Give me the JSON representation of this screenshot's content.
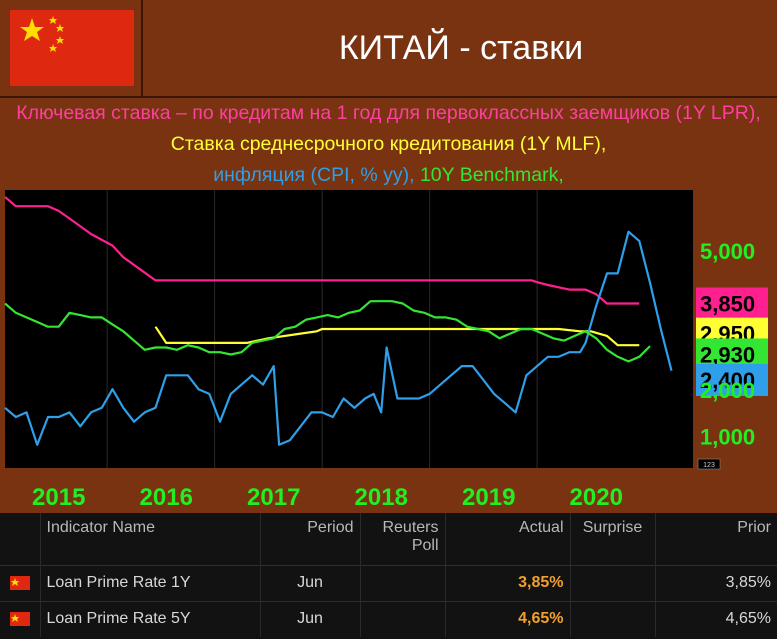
{
  "header": {
    "title": "КИТАЙ - ставки"
  },
  "subtitle": {
    "part1": "Ключевая ставка – по кредитам на 1 год для первоклассных заемщиков (1Y LPR),",
    "part2": "Ставка среднесрочного кредитования (1Y MLF),",
    "part3": "инфляция (CPI, % yy),",
    "part4": "10Y Benchmark,"
  },
  "colors": {
    "lpr": "#ff1f8f",
    "mlf": "#ffff33",
    "cpi": "#2e9fe8",
    "bench": "#33e633",
    "year_label": "#22ee22",
    "actual": "#f0a030"
  },
  "chart_data": {
    "type": "line",
    "x_labels": [
      "2015",
      "2016",
      "2017",
      "2018",
      "2019",
      "2020"
    ],
    "y_ticks": [
      "5,000",
      "2,000",
      "1,000"
    ],
    "ylim": [
      0.3,
      6.3
    ],
    "corner_label": "123",
    "series": [
      {
        "name": "1Y LPR",
        "color": "#ff1f8f",
        "last_label": "3,850",
        "points": [
          [
            2014.55,
            6.15
          ],
          [
            2014.65,
            5.95
          ],
          [
            2014.95,
            5.95
          ],
          [
            2015.05,
            5.85
          ],
          [
            2015.2,
            5.6
          ],
          [
            2015.35,
            5.35
          ],
          [
            2015.55,
            5.1
          ],
          [
            2015.65,
            4.85
          ],
          [
            2015.8,
            4.6
          ],
          [
            2015.95,
            4.35
          ],
          [
            2016.0,
            4.35
          ],
          [
            2018.0,
            4.35
          ],
          [
            2019.45,
            4.35
          ],
          [
            2019.5,
            4.31
          ],
          [
            2019.6,
            4.25
          ],
          [
            2019.7,
            4.2
          ],
          [
            2019.8,
            4.15
          ],
          [
            2019.95,
            4.15
          ],
          [
            2020.05,
            4.05
          ],
          [
            2020.15,
            3.85
          ],
          [
            2020.45,
            3.85
          ]
        ]
      },
      {
        "name": "1Y MLF",
        "color": "#ffff33",
        "last_label": "2,950",
        "points": [
          [
            2015.95,
            3.35
          ],
          [
            2016.05,
            3.0
          ],
          [
            2016.75,
            3.0
          ],
          [
            2016.8,
            3.0
          ],
          [
            2017.0,
            3.1
          ],
          [
            2017.3,
            3.2
          ],
          [
            2017.45,
            3.25
          ],
          [
            2017.5,
            3.3
          ],
          [
            2017.9,
            3.3
          ],
          [
            2018.0,
            3.3
          ],
          [
            2019.7,
            3.3
          ],
          [
            2019.9,
            3.25
          ],
          [
            2020.0,
            3.25
          ],
          [
            2020.15,
            3.15
          ],
          [
            2020.25,
            2.95
          ],
          [
            2020.45,
            2.95
          ]
        ]
      },
      {
        "name": "CPI",
        "color": "#2e9fe8",
        "last_label": "2,400",
        "points": [
          [
            2014.55,
            1.6
          ],
          [
            2014.65,
            1.4
          ],
          [
            2014.75,
            1.5
          ],
          [
            2014.85,
            0.8
          ],
          [
            2014.95,
            1.4
          ],
          [
            2015.05,
            1.4
          ],
          [
            2015.15,
            1.5
          ],
          [
            2015.25,
            1.2
          ],
          [
            2015.35,
            1.5
          ],
          [
            2015.45,
            1.6
          ],
          [
            2015.55,
            2.0
          ],
          [
            2015.65,
            1.6
          ],
          [
            2015.75,
            1.3
          ],
          [
            2015.85,
            1.5
          ],
          [
            2015.95,
            1.6
          ],
          [
            2016.05,
            2.3
          ],
          [
            2016.15,
            2.3
          ],
          [
            2016.25,
            2.3
          ],
          [
            2016.35,
            2.0
          ],
          [
            2016.45,
            1.9
          ],
          [
            2016.55,
            1.3
          ],
          [
            2016.65,
            1.9
          ],
          [
            2016.75,
            2.1
          ],
          [
            2016.85,
            2.3
          ],
          [
            2016.95,
            2.1
          ],
          [
            2017.05,
            2.5
          ],
          [
            2017.1,
            0.8
          ],
          [
            2017.2,
            0.9
          ],
          [
            2017.3,
            1.2
          ],
          [
            2017.4,
            1.5
          ],
          [
            2017.5,
            1.5
          ],
          [
            2017.6,
            1.4
          ],
          [
            2017.7,
            1.8
          ],
          [
            2017.8,
            1.6
          ],
          [
            2017.9,
            1.8
          ],
          [
            2017.98,
            1.9
          ],
          [
            2018.05,
            1.5
          ],
          [
            2018.1,
            2.9
          ],
          [
            2018.2,
            1.8
          ],
          [
            2018.3,
            1.8
          ],
          [
            2018.4,
            1.8
          ],
          [
            2018.5,
            1.9
          ],
          [
            2018.6,
            2.1
          ],
          [
            2018.7,
            2.3
          ],
          [
            2018.8,
            2.5
          ],
          [
            2018.9,
            2.5
          ],
          [
            2019.0,
            2.2
          ],
          [
            2019.1,
            1.9
          ],
          [
            2019.2,
            1.7
          ],
          [
            2019.3,
            1.5
          ],
          [
            2019.4,
            2.3
          ],
          [
            2019.5,
            2.5
          ],
          [
            2019.6,
            2.7
          ],
          [
            2019.7,
            2.7
          ],
          [
            2019.8,
            2.8
          ],
          [
            2019.9,
            2.8
          ],
          [
            2019.95,
            3.0
          ],
          [
            2020.05,
            3.8
          ],
          [
            2020.15,
            4.5
          ],
          [
            2020.25,
            4.5
          ],
          [
            2020.35,
            5.4
          ],
          [
            2020.45,
            5.2
          ],
          [
            2020.55,
            4.3
          ],
          [
            2020.65,
            3.3
          ],
          [
            2020.75,
            2.4
          ]
        ]
      },
      {
        "name": "10Y Benchmark",
        "color": "#33e633",
        "last_label": "2,930",
        "points": [
          [
            2014.55,
            3.85
          ],
          [
            2014.65,
            3.65
          ],
          [
            2014.75,
            3.55
          ],
          [
            2014.85,
            3.45
          ],
          [
            2014.95,
            3.35
          ],
          [
            2015.05,
            3.35
          ],
          [
            2015.15,
            3.65
          ],
          [
            2015.25,
            3.6
          ],
          [
            2015.35,
            3.55
          ],
          [
            2015.45,
            3.55
          ],
          [
            2015.55,
            3.4
          ],
          [
            2015.65,
            3.25
          ],
          [
            2015.75,
            3.05
          ],
          [
            2015.85,
            2.85
          ],
          [
            2015.95,
            2.9
          ],
          [
            2016.05,
            2.9
          ],
          [
            2016.15,
            2.85
          ],
          [
            2016.25,
            2.95
          ],
          [
            2016.35,
            2.9
          ],
          [
            2016.45,
            2.8
          ],
          [
            2016.55,
            2.8
          ],
          [
            2016.65,
            2.75
          ],
          [
            2016.75,
            2.8
          ],
          [
            2016.85,
            3.0
          ],
          [
            2016.95,
            3.05
          ],
          [
            2017.05,
            3.1
          ],
          [
            2017.15,
            3.3
          ],
          [
            2017.25,
            3.35
          ],
          [
            2017.35,
            3.5
          ],
          [
            2017.45,
            3.55
          ],
          [
            2017.55,
            3.6
          ],
          [
            2017.65,
            3.55
          ],
          [
            2017.75,
            3.65
          ],
          [
            2017.85,
            3.7
          ],
          [
            2017.95,
            3.9
          ],
          [
            2018.05,
            3.9
          ],
          [
            2018.15,
            3.9
          ],
          [
            2018.25,
            3.85
          ],
          [
            2018.35,
            3.7
          ],
          [
            2018.45,
            3.65
          ],
          [
            2018.55,
            3.55
          ],
          [
            2018.65,
            3.55
          ],
          [
            2018.75,
            3.5
          ],
          [
            2018.85,
            3.35
          ],
          [
            2018.95,
            3.3
          ],
          [
            2019.05,
            3.25
          ],
          [
            2019.15,
            3.1
          ],
          [
            2019.25,
            3.2
          ],
          [
            2019.35,
            3.3
          ],
          [
            2019.45,
            3.3
          ],
          [
            2019.55,
            3.2
          ],
          [
            2019.65,
            3.1
          ],
          [
            2019.75,
            3.05
          ],
          [
            2019.85,
            3.15
          ],
          [
            2019.95,
            3.25
          ],
          [
            2020.05,
            3.1
          ],
          [
            2020.15,
            2.85
          ],
          [
            2020.25,
            2.7
          ],
          [
            2020.35,
            2.6
          ],
          [
            2020.45,
            2.7
          ],
          [
            2020.55,
            2.93
          ]
        ]
      }
    ]
  },
  "table": {
    "headers": {
      "name": "Indicator Name",
      "period": "Period",
      "poll": "Reuters Poll",
      "actual": "Actual",
      "surprise": "Surprise",
      "prior": "Prior"
    },
    "rows": [
      {
        "name": "Loan Prime Rate 1Y",
        "period": "Jun",
        "poll": "",
        "actual": "3,85%",
        "surprise": "",
        "prior": "3,85%"
      },
      {
        "name": "Loan Prime Rate 5Y",
        "period": "Jun",
        "poll": "",
        "actual": "4,65%",
        "surprise": "",
        "prior": "4,65%"
      }
    ]
  }
}
